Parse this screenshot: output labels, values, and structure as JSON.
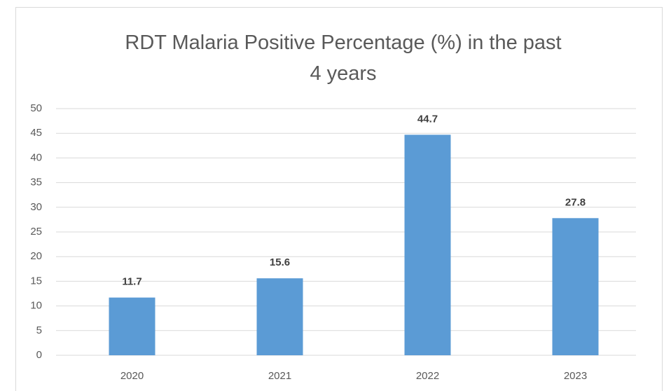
{
  "chart_data": {
    "type": "bar",
    "title": "RDT Malaria Positive Percentage (%) in the past 4 years",
    "categories": [
      "2020",
      "2021",
      "2022",
      "2023"
    ],
    "values": [
      11.7,
      15.6,
      44.7,
      27.8
    ],
    "color": "#5b9bd5",
    "ylim": [
      0,
      50
    ],
    "yticks": [
      0,
      5,
      10,
      15,
      20,
      25,
      30,
      35,
      40,
      45,
      50
    ],
    "grid": true
  }
}
